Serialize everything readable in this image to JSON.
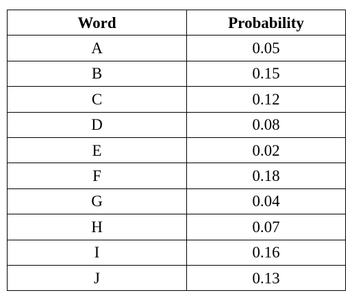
{
  "table": {
    "headers": [
      "Word",
      "Probability"
    ],
    "rows": [
      {
        "word": "A",
        "probability": "0.05"
      },
      {
        "word": "B",
        "probability": "0.15"
      },
      {
        "word": "C",
        "probability": "0.12"
      },
      {
        "word": "D",
        "probability": "0.08"
      },
      {
        "word": "E",
        "probability": "0.02"
      },
      {
        "word": "F",
        "probability": "0.18"
      },
      {
        "word": "G",
        "probability": "0.04"
      },
      {
        "word": "H",
        "probability": "0.07"
      },
      {
        "word": "I",
        "probability": "0.16"
      },
      {
        "word": "J",
        "probability": "0.13"
      }
    ]
  }
}
